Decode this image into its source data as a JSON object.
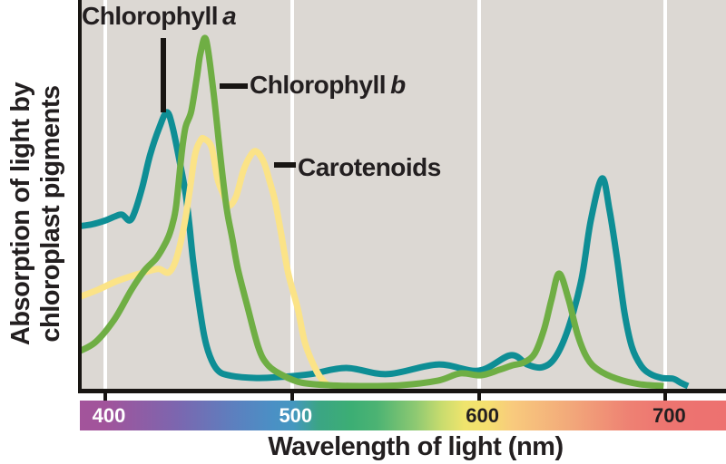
{
  "figure": {
    "background": "#ffffff",
    "plot_background": "#dcd8d3",
    "text_color": "#231f20",
    "axis_color": "#181512",
    "gridline_color": "#ffffff"
  },
  "labels": {
    "chlorophyll_a": {
      "text": "Chlorophyll",
      "italic": "a"
    },
    "chlorophyll_b": {
      "text": "Chlorophyll",
      "italic": "b"
    },
    "carotenoids": {
      "text": "Carotenoids",
      "italic": ""
    }
  },
  "chart_data": {
    "type": "line",
    "title": "",
    "xlabel": "Wavelength of light (nm)",
    "ylabel": "Absorption of light by chloroplast pigments",
    "ylabel_lines": [
      "Absorption of light by",
      "chloroplast pigments"
    ],
    "xlim": [
      386,
      732
    ],
    "ylim": [
      0,
      1
    ],
    "grid": "vertical white gridlines at x ticks",
    "legend_position": "inline annotations with pointer lines",
    "x_ticks": [
      {
        "value": 400,
        "label": "400",
        "label_color": "#ffffff"
      },
      {
        "value": 500,
        "label": "500",
        "label_color": "#ffffff"
      },
      {
        "value": 600,
        "label": "600",
        "label_color": "#231f20"
      },
      {
        "value": 700,
        "label": "700",
        "label_color": "#231f20"
      }
    ],
    "series": [
      {
        "name": "Chlorophyll a",
        "color": "#0e8e95",
        "points": [
          [
            386,
            0.415
          ],
          [
            393,
            0.42
          ],
          [
            400,
            0.43
          ],
          [
            405,
            0.44
          ],
          [
            409,
            0.445
          ],
          [
            413,
            0.43
          ],
          [
            416,
            0.455
          ],
          [
            420,
            0.52
          ],
          [
            424,
            0.6
          ],
          [
            429,
            0.672
          ],
          [
            433,
            0.711
          ],
          [
            436,
            0.673
          ],
          [
            440,
            0.579
          ],
          [
            443,
            0.5
          ],
          [
            445,
            0.42
          ],
          [
            447,
            0.327
          ],
          [
            450,
            0.22
          ],
          [
            453,
            0.13
          ],
          [
            456,
            0.078
          ],
          [
            460,
            0.042
          ],
          [
            466,
            0.028
          ],
          [
            481,
            0.021
          ],
          [
            495,
            0.024
          ],
          [
            510,
            0.031
          ],
          [
            529,
            0.047
          ],
          [
            551,
            0.031
          ],
          [
            578,
            0.056
          ],
          [
            600,
            0.04
          ],
          [
            617,
            0.08
          ],
          [
            626,
            0.056
          ],
          [
            634,
            0.049
          ],
          [
            641,
            0.075
          ],
          [
            648,
            0.151
          ],
          [
            655,
            0.278
          ],
          [
            660,
            0.431
          ],
          [
            666,
            0.539
          ],
          [
            670,
            0.456
          ],
          [
            674,
            0.332
          ],
          [
            678,
            0.191
          ],
          [
            682,
            0.101
          ],
          [
            687,
            0.052
          ],
          [
            692,
            0.031
          ],
          [
            698,
            0.021
          ],
          [
            704,
            0.019
          ],
          [
            708,
            0.009
          ],
          [
            712,
            0.0
          ]
        ]
      },
      {
        "name": "Carotenoids",
        "color": "#fbe387",
        "points": [
          [
            386,
            0.231
          ],
          [
            396,
            0.25
          ],
          [
            406,
            0.272
          ],
          [
            415,
            0.287
          ],
          [
            425,
            0.301
          ],
          [
            429,
            0.304
          ],
          [
            434,
            0.295
          ],
          [
            438,
            0.33
          ],
          [
            442,
            0.41
          ],
          [
            445,
            0.5
          ],
          [
            448,
            0.6
          ],
          [
            451,
            0.638
          ],
          [
            453,
            0.642
          ],
          [
            457,
            0.619
          ],
          [
            460,
            0.54
          ],
          [
            463,
            0.5
          ],
          [
            466,
            0.468
          ],
          [
            470,
            0.492
          ],
          [
            474,
            0.56
          ],
          [
            478,
            0.6
          ],
          [
            481,
            0.609
          ],
          [
            485,
            0.58
          ],
          [
            488,
            0.532
          ],
          [
            491,
            0.478
          ],
          [
            494,
            0.4
          ],
          [
            498,
            0.292
          ],
          [
            503,
            0.202
          ],
          [
            507,
            0.111
          ],
          [
            513,
            0.04
          ],
          [
            517,
            0.012
          ],
          [
            520,
            0.0
          ]
        ]
      },
      {
        "name": "Chlorophyll b",
        "color": "#6fae44",
        "points": [
          [
            386,
            0.09
          ],
          [
            395,
            0.115
          ],
          [
            405,
            0.174
          ],
          [
            414,
            0.25
          ],
          [
            421,
            0.3
          ],
          [
            427,
            0.33
          ],
          [
            431,
            0.36
          ],
          [
            434,
            0.39
          ],
          [
            436,
            0.421
          ],
          [
            438,
            0.47
          ],
          [
            441,
            0.609
          ],
          [
            443,
            0.673
          ],
          [
            446,
            0.713
          ],
          [
            449,
            0.8
          ],
          [
            451,
            0.865
          ],
          [
            454,
            0.899
          ],
          [
            458,
            0.76
          ],
          [
            462,
            0.58
          ],
          [
            465,
            0.461
          ],
          [
            468,
            0.384
          ],
          [
            471,
            0.304
          ],
          [
            476,
            0.209
          ],
          [
            482,
            0.1
          ],
          [
            487,
            0.055
          ],
          [
            495,
            0.028
          ],
          [
            505,
            0.009
          ],
          [
            520,
            0.002
          ],
          [
            539,
            0.0
          ],
          [
            558,
            0.002
          ],
          [
            578,
            0.014
          ],
          [
            590,
            0.033
          ],
          [
            601,
            0.028
          ],
          [
            611,
            0.042
          ],
          [
            618,
            0.054
          ],
          [
            624,
            0.061
          ],
          [
            630,
            0.085
          ],
          [
            635,
            0.148
          ],
          [
            639,
            0.226
          ],
          [
            643,
            0.292
          ],
          [
            648,
            0.226
          ],
          [
            653,
            0.132
          ],
          [
            658,
            0.073
          ],
          [
            664,
            0.042
          ],
          [
            674,
            0.019
          ],
          [
            686,
            0.005
          ],
          [
            699,
            0.0
          ]
        ]
      }
    ],
    "spectrum_bar": {
      "stops": [
        {
          "pos": 0.0,
          "color": "#a3549b"
        },
        {
          "pos": 0.04,
          "color": "#a1549b"
        },
        {
          "pos": 0.15,
          "color": "#7c66af"
        },
        {
          "pos": 0.24,
          "color": "#5c80bf"
        },
        {
          "pos": 0.3,
          "color": "#4a90c5"
        },
        {
          "pos": 0.33,
          "color": "#4597c0"
        },
        {
          "pos": 0.37,
          "color": "#3ba584"
        },
        {
          "pos": 0.42,
          "color": "#3cae74"
        },
        {
          "pos": 0.46,
          "color": "#4cb373"
        },
        {
          "pos": 0.52,
          "color": "#8ec972"
        },
        {
          "pos": 0.56,
          "color": "#c9dc6e"
        },
        {
          "pos": 0.595,
          "color": "#efe46d"
        },
        {
          "pos": 0.63,
          "color": "#f5e06f"
        },
        {
          "pos": 0.67,
          "color": "#f8ca7d"
        },
        {
          "pos": 0.76,
          "color": "#f2a87a"
        },
        {
          "pos": 0.85,
          "color": "#ee8173"
        },
        {
          "pos": 0.91,
          "color": "#ed7470"
        },
        {
          "pos": 1.0,
          "color": "#ed7170"
        }
      ]
    }
  }
}
